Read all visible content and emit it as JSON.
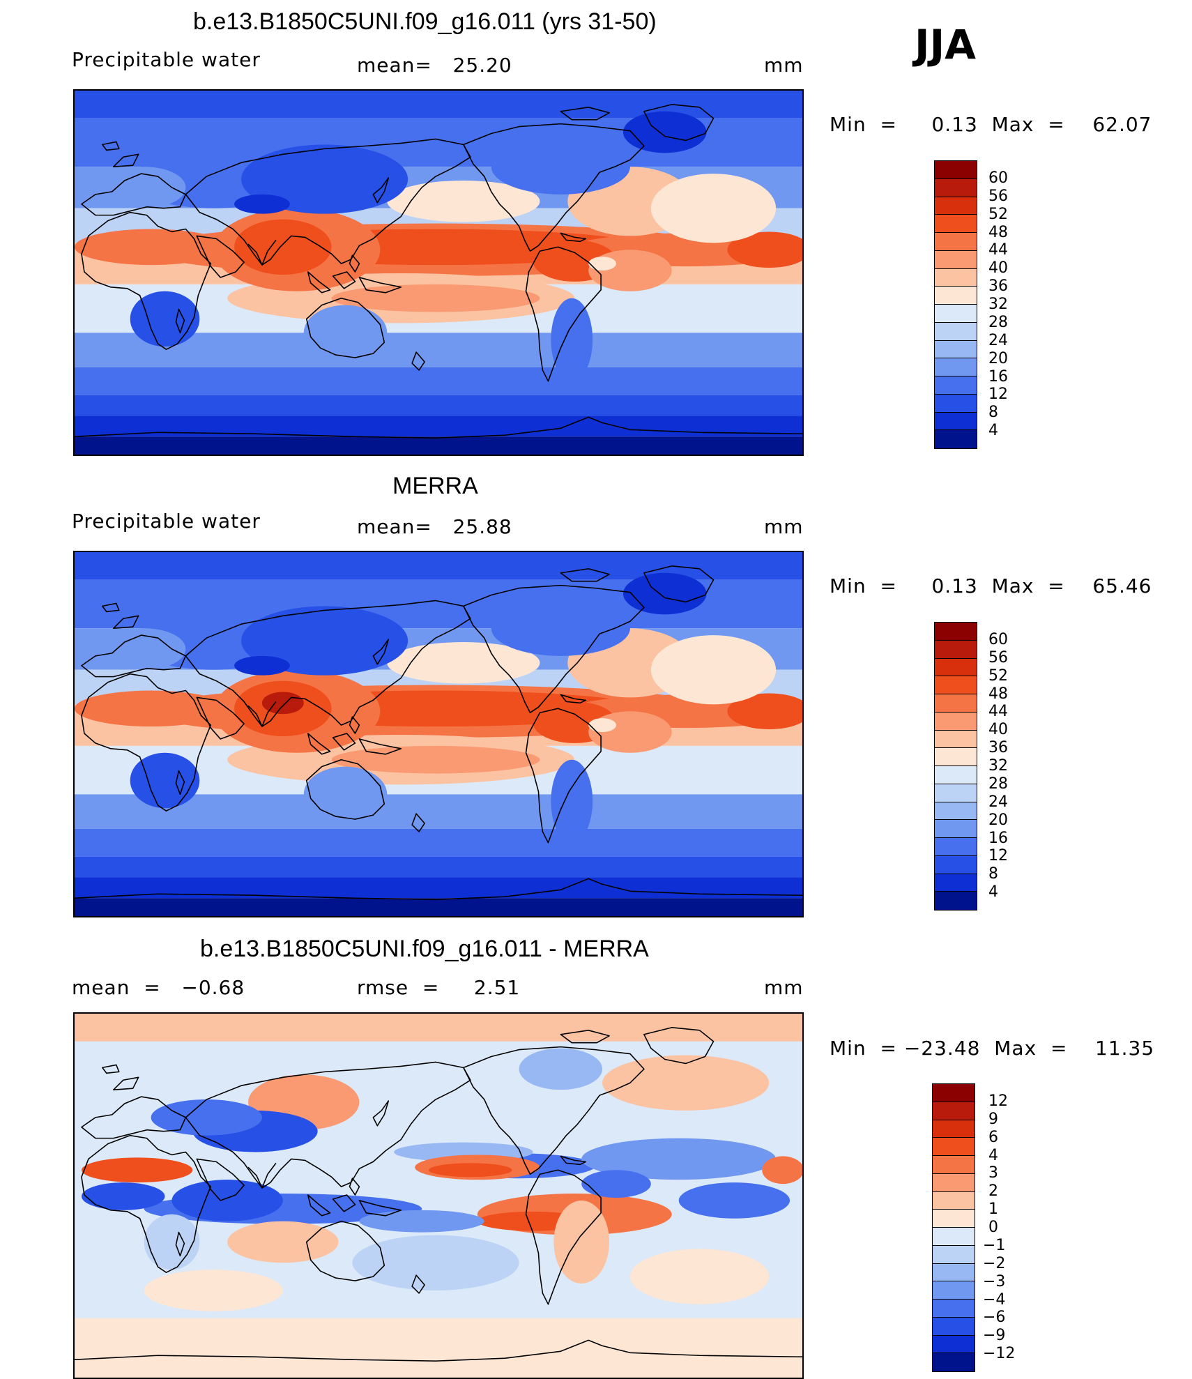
{
  "season": "JJA",
  "panels": [
    {
      "title": "b.e13.B1850C5UNI.f09_g16.011 (yrs 31-50)",
      "variable": "Precipitable water",
      "stat_left": "",
      "stat_center": "mean=   25.20",
      "units": "mm",
      "minmax": "Min  =     0.13  Max  =    62.07",
      "field": "model"
    },
    {
      "title": "MERRA",
      "variable": "Precipitable water",
      "stat_left": "",
      "stat_center": "mean=   25.88",
      "units": "mm",
      "minmax": "Min  =     0.13  Max  =    65.46",
      "field": "obs"
    },
    {
      "title": "b.e13.B1850C5UNI.f09_g16.011 - MERRA",
      "variable": "",
      "stat_left": "mean  =   −0.68",
      "stat_center": "rmse  =     2.51",
      "units": "mm",
      "minmax": "Min  = −23.48  Max  =    11.35",
      "field": "diff"
    }
  ],
  "colorbars": {
    "abs": {
      "labels": [
        "60",
        "56",
        "52",
        "48",
        "44",
        "40",
        "36",
        "32",
        "28",
        "24",
        "20",
        "16",
        "12",
        "8",
        "4"
      ],
      "colors": [
        "#8b0000",
        "#b81a0b",
        "#d8300c",
        "#ef4f1c",
        "#f57446",
        "#f99a72",
        "#fcc3a3",
        "#fde6d4",
        "#dbe9f8",
        "#bcd3f5",
        "#98b8f3",
        "#7198f0",
        "#4670ee",
        "#2650e6",
        "#0d2fd4",
        "#00138c"
      ]
    },
    "diff": {
      "labels": [
        "12",
        "9",
        "6",
        "4",
        "3",
        "2",
        "1",
        "0",
        "−1",
        "−2",
        "−3",
        "−4",
        "−6",
        "−9",
        "−12"
      ],
      "colors": [
        "#8b0000",
        "#b81a0b",
        "#d8300c",
        "#ef4f1c",
        "#f57446",
        "#f99a72",
        "#fcc3a3",
        "#fde6d4",
        "#dbe9f8",
        "#bcd3f5",
        "#98b8f3",
        "#7198f0",
        "#4670ee",
        "#2650e6",
        "#0d2fd4",
        "#00138c"
      ]
    }
  }
}
